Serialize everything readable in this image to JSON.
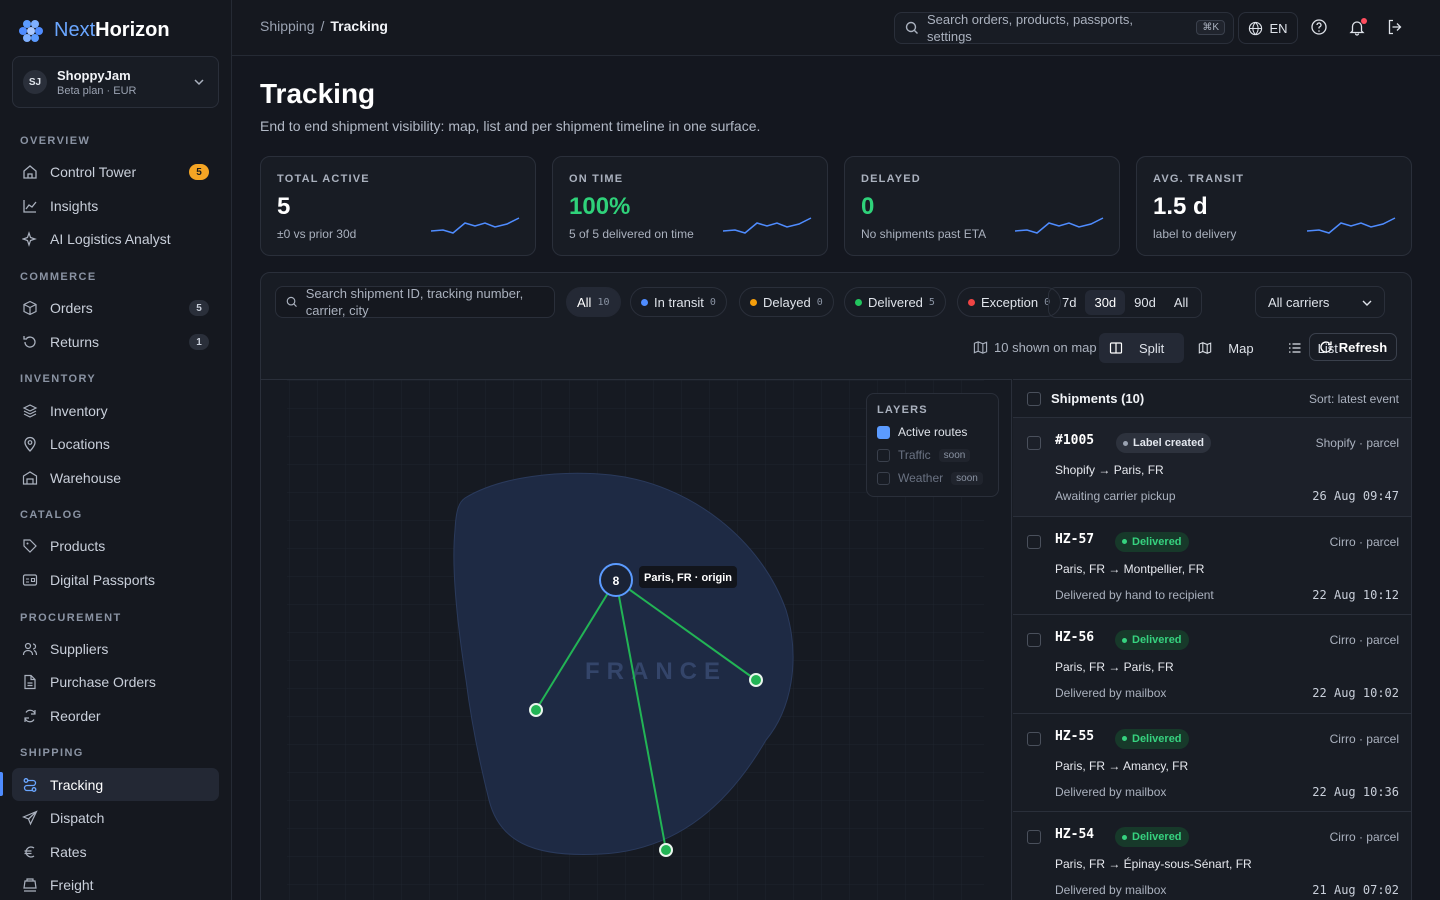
{
  "brand": {
    "name_part1": "Next",
    "name_part2": "Horizon"
  },
  "org": {
    "initials": "SJ",
    "name": "ShoppyJam",
    "plan": "Beta plan · EUR"
  },
  "sidebar": {
    "sections": [
      "OVERVIEW",
      "COMMERCE",
      "INVENTORY",
      "CATALOG",
      "PROCUREMENT",
      "SHIPPING"
    ],
    "items": [
      {
        "label": "Control Tower",
        "badge": "5"
      },
      {
        "label": "Insights"
      },
      {
        "label": "AI Logistics Analyst"
      },
      {
        "label": "Orders",
        "badge": "5"
      },
      {
        "label": "Returns",
        "badge": "1"
      },
      {
        "label": "Inventory"
      },
      {
        "label": "Locations"
      },
      {
        "label": "Warehouse"
      },
      {
        "label": "Products"
      },
      {
        "label": "Digital Passports"
      },
      {
        "label": "Suppliers"
      },
      {
        "label": "Purchase Orders"
      },
      {
        "label": "Reorder"
      },
      {
        "label": "Tracking"
      },
      {
        "label": "Dispatch"
      },
      {
        "label": "Rates"
      },
      {
        "label": "Freight"
      }
    ]
  },
  "topbar": {
    "breadcrumb": [
      "Shipping",
      "Tracking"
    ],
    "search_placeholder": "Search orders, products, passports, settings",
    "shortcut": "⌘K",
    "language": "EN"
  },
  "page": {
    "title": "Tracking",
    "subtitle": "End to end shipment visibility: map, list and per shipment timeline in one surface."
  },
  "kpis": [
    {
      "label": "TOTAL ACTIVE",
      "value": "5",
      "note": "±0  vs prior 30d"
    },
    {
      "label": "ON TIME",
      "value": "100%",
      "note": "5 of 5 delivered on time"
    },
    {
      "label": "DELAYED",
      "value": "0",
      "note": "No shipments past ETA"
    },
    {
      "label": "AVG. TRANSIT",
      "value": "1.5 d",
      "note": "label to delivery"
    }
  ],
  "filters": {
    "search_placeholder": "Search shipment ID, tracking number, carrier, city",
    "chips": [
      {
        "label": "All",
        "count": "10"
      },
      {
        "label": "In transit",
        "count": "0",
        "color": "#4f8cff"
      },
      {
        "label": "Delayed",
        "count": "0",
        "color": "#f59e0b"
      },
      {
        "label": "Delivered",
        "count": "5",
        "color": "#22c55e"
      },
      {
        "label": "Exception",
        "count": "0",
        "color": "#ef4444"
      }
    ],
    "ranges": [
      "7d",
      "30d",
      "90d",
      "All"
    ],
    "selected_range": "30d",
    "carrier": "All carriers",
    "shown_on_map": "10 shown on map",
    "views": [
      "Split",
      "Map",
      "List"
    ],
    "refresh": "Refresh"
  },
  "map": {
    "country_label": "FRANCE",
    "origin_count": "8",
    "origin_label": "Paris, FR · origin",
    "layers_title": "LAYERS",
    "layers": [
      {
        "label": "Active routes",
        "on": true
      },
      {
        "label": "Traffic",
        "tag": "soon"
      },
      {
        "label": "Weather",
        "tag": "soon"
      }
    ]
  },
  "list": {
    "header": "Shipments (10)",
    "sort": "Sort: latest event",
    "rows": [
      {
        "id": "#1005",
        "status": "Label created",
        "carrier": "Shopify · parcel",
        "route": "Shopify → Paris, FR",
        "event": "Awaiting carrier pickup",
        "time": "26 Aug 09:47"
      },
      {
        "id": "HZ-57",
        "status": "Delivered",
        "carrier": "Cirro · parcel",
        "route": "Paris, FR → Montpellier, FR",
        "event": "Delivered by hand to recipient",
        "time": "22 Aug 10:12"
      },
      {
        "id": "HZ-56",
        "status": "Delivered",
        "carrier": "Cirro · parcel",
        "route": "Paris, FR → Paris, FR",
        "event": "Delivered by mailbox",
        "time": "22 Aug 10:02"
      },
      {
        "id": "HZ-55",
        "status": "Delivered",
        "carrier": "Cirro · parcel",
        "route": "Paris, FR → Amancy, FR",
        "event": "Delivered by mailbox",
        "time": "22 Aug 10:36"
      },
      {
        "id": "HZ-54",
        "status": "Delivered",
        "carrier": "Cirro · parcel",
        "route": "Paris, FR → Épinay-sous-Sénart, FR",
        "event": "Delivered by mailbox",
        "time": "21 Aug 07:02"
      }
    ]
  }
}
